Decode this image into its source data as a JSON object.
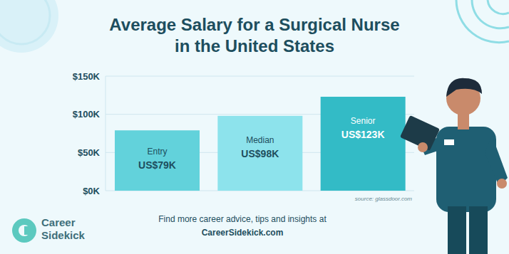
{
  "chart_data": {
    "type": "bar",
    "title": "Average Salary for a Surgical Nurse\nin the United States",
    "categories": [
      "Entry",
      "Median",
      "Senior"
    ],
    "values": [
      79,
      98,
      123
    ],
    "value_labels": [
      "US$79K",
      "US$98K",
      "US$123K"
    ],
    "colors": [
      "#62d2db",
      "#8de3ec",
      "#33bbc6"
    ],
    "ylim": [
      0,
      150
    ],
    "yticks": [
      {
        "value": 0,
        "label": "$0K"
      },
      {
        "value": 50,
        "label": "$50K"
      },
      {
        "value": 100,
        "label": "$100K"
      },
      {
        "value": 150,
        "label": "$150K"
      }
    ],
    "grid": true,
    "data_labels": true,
    "source": "source: glassdoor.com",
    "footer": [
      "Find more career advice, tips and insights at",
      "CareerSidekick.com"
    ],
    "brand": [
      "Career",
      "Sidekick"
    ]
  }
}
